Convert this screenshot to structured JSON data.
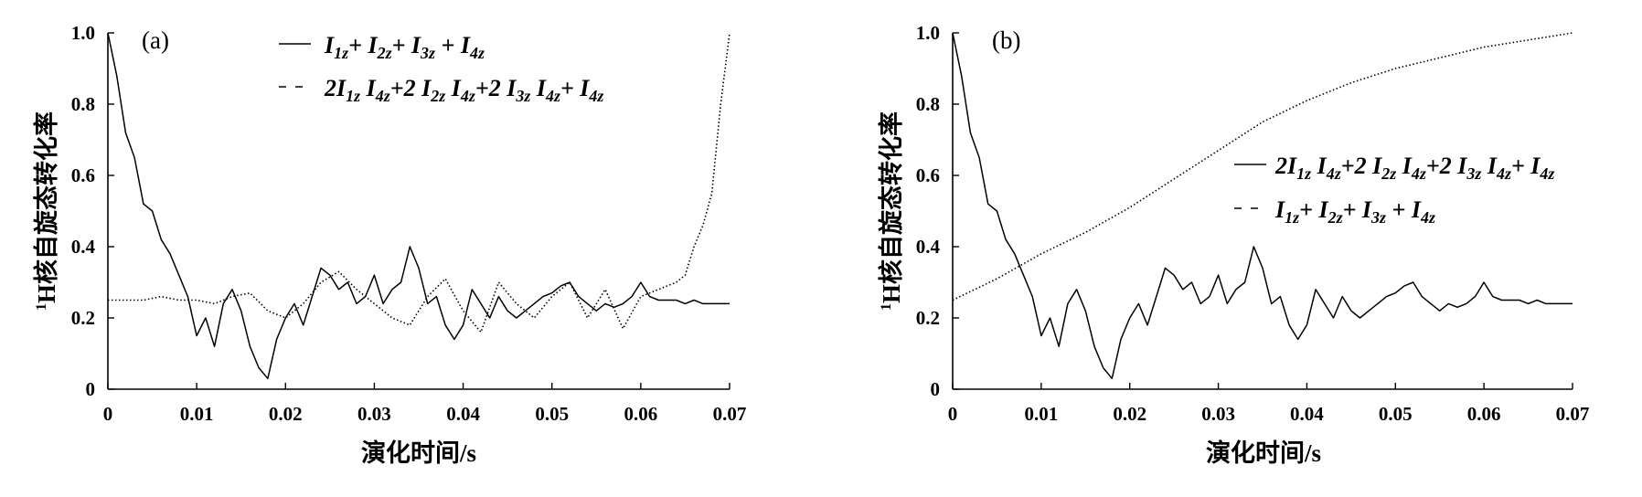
{
  "chart_data": [
    {
      "type": "line",
      "panel_label": "(a)",
      "xlabel": "演化时间/s",
      "ylabel": "1H核自旋态转化率",
      "ylabel_sup": "1",
      "ylabel_rest": "H核自旋态转化率",
      "xlim": [
        0,
        0.07
      ],
      "ylim": [
        0,
        1.0
      ],
      "xticks": [
        "0",
        "0.01",
        "0.02",
        "0.03",
        "0.04",
        "0.05",
        "0.06",
        "0.07"
      ],
      "yticks": [
        "0",
        "0.2",
        "0.4",
        "0.6",
        "0.8",
        "1.0"
      ],
      "legend_position": "top-center",
      "series": [
        {
          "name": "I1z+ I2z+ I3z + I4z",
          "style": "solid",
          "x": [
            0,
            0.001,
            0.002,
            0.003,
            0.004,
            0.005,
            0.006,
            0.007,
            0.008,
            0.009,
            0.01,
            0.011,
            0.012,
            0.013,
            0.014,
            0.015,
            0.016,
            0.017,
            0.018,
            0.019,
            0.02,
            0.021,
            0.022,
            0.023,
            0.024,
            0.025,
            0.026,
            0.027,
            0.028,
            0.029,
            0.03,
            0.031,
            0.032,
            0.033,
            0.034,
            0.035,
            0.036,
            0.037,
            0.038,
            0.039,
            0.04,
            0.041,
            0.042,
            0.043,
            0.044,
            0.045,
            0.046,
            0.047,
            0.048,
            0.049,
            0.05,
            0.051,
            0.052,
            0.053,
            0.054,
            0.055,
            0.056,
            0.057,
            0.058,
            0.059,
            0.06,
            0.061,
            0.062,
            0.063,
            0.064,
            0.065,
            0.066,
            0.067,
            0.068,
            0.069,
            0.07
          ],
          "y": [
            1.0,
            0.88,
            0.72,
            0.65,
            0.52,
            0.5,
            0.42,
            0.38,
            0.32,
            0.26,
            0.15,
            0.2,
            0.12,
            0.24,
            0.28,
            0.22,
            0.12,
            0.06,
            0.03,
            0.14,
            0.2,
            0.24,
            0.18,
            0.26,
            0.34,
            0.32,
            0.28,
            0.3,
            0.24,
            0.26,
            0.32,
            0.24,
            0.28,
            0.3,
            0.4,
            0.34,
            0.24,
            0.26,
            0.18,
            0.14,
            0.18,
            0.28,
            0.24,
            0.2,
            0.26,
            0.22,
            0.2,
            0.22,
            0.24,
            0.26,
            0.27,
            0.29,
            0.3,
            0.26,
            0.24,
            0.22,
            0.24,
            0.23,
            0.24,
            0.26,
            0.3,
            0.26,
            0.25,
            0.25,
            0.25,
            0.24,
            0.25,
            0.24,
            0.24,
            0.24,
            0.24
          ]
        },
        {
          "name": "2I1z I4z+2 I2z I4z+2 I3z I4z+ I4z",
          "style": "dotted",
          "x": [
            0,
            0.002,
            0.004,
            0.006,
            0.008,
            0.01,
            0.012,
            0.014,
            0.016,
            0.018,
            0.02,
            0.022,
            0.024,
            0.026,
            0.028,
            0.03,
            0.032,
            0.034,
            0.036,
            0.038,
            0.04,
            0.042,
            0.044,
            0.046,
            0.048,
            0.05,
            0.052,
            0.054,
            0.056,
            0.058,
            0.06,
            0.062,
            0.063,
            0.064,
            0.065,
            0.066,
            0.067,
            0.068,
            0.069,
            0.07
          ],
          "y": [
            0.25,
            0.25,
            0.25,
            0.26,
            0.25,
            0.25,
            0.24,
            0.26,
            0.27,
            0.22,
            0.2,
            0.24,
            0.3,
            0.33,
            0.28,
            0.24,
            0.2,
            0.18,
            0.26,
            0.31,
            0.22,
            0.16,
            0.3,
            0.24,
            0.2,
            0.26,
            0.3,
            0.2,
            0.28,
            0.17,
            0.26,
            0.28,
            0.29,
            0.3,
            0.32,
            0.4,
            0.46,
            0.55,
            0.8,
            1.0
          ]
        }
      ]
    },
    {
      "type": "line",
      "panel_label": "(b)",
      "xlabel": "演化时间/s",
      "ylabel": "1H核自旋态转化率",
      "ylabel_sup": "1",
      "ylabel_rest": "H核自旋态转化率",
      "xlim": [
        0,
        0.07
      ],
      "ylim": [
        0,
        1.0
      ],
      "xticks": [
        "0",
        "0.01",
        "0.02",
        "0.03",
        "0.04",
        "0.05",
        "0.06",
        "0.07"
      ],
      "yticks": [
        "0",
        "0.2",
        "0.4",
        "0.6",
        "0.8",
        "1.0"
      ],
      "legend_position": "right",
      "series": [
        {
          "name": "2I1z I4z+2 I2z I4z+2 I3z I4z+ I4z",
          "style": "solid",
          "x": [
            0,
            0.001,
            0.002,
            0.003,
            0.004,
            0.005,
            0.006,
            0.007,
            0.008,
            0.009,
            0.01,
            0.011,
            0.012,
            0.013,
            0.014,
            0.015,
            0.016,
            0.017,
            0.018,
            0.019,
            0.02,
            0.021,
            0.022,
            0.023,
            0.024,
            0.025,
            0.026,
            0.027,
            0.028,
            0.029,
            0.03,
            0.031,
            0.032,
            0.033,
            0.034,
            0.035,
            0.036,
            0.037,
            0.038,
            0.039,
            0.04,
            0.041,
            0.042,
            0.043,
            0.044,
            0.045,
            0.046,
            0.047,
            0.048,
            0.049,
            0.05,
            0.051,
            0.052,
            0.053,
            0.054,
            0.055,
            0.056,
            0.057,
            0.058,
            0.059,
            0.06,
            0.061,
            0.062,
            0.063,
            0.064,
            0.065,
            0.066,
            0.067,
            0.068,
            0.069,
            0.07
          ],
          "y": [
            1.0,
            0.88,
            0.72,
            0.65,
            0.52,
            0.5,
            0.42,
            0.38,
            0.32,
            0.26,
            0.15,
            0.2,
            0.12,
            0.24,
            0.28,
            0.22,
            0.12,
            0.06,
            0.03,
            0.14,
            0.2,
            0.24,
            0.18,
            0.26,
            0.34,
            0.32,
            0.28,
            0.3,
            0.24,
            0.26,
            0.32,
            0.24,
            0.28,
            0.3,
            0.4,
            0.34,
            0.24,
            0.26,
            0.18,
            0.14,
            0.18,
            0.28,
            0.24,
            0.2,
            0.26,
            0.22,
            0.2,
            0.22,
            0.24,
            0.26,
            0.27,
            0.29,
            0.3,
            0.26,
            0.24,
            0.22,
            0.24,
            0.23,
            0.24,
            0.26,
            0.3,
            0.26,
            0.25,
            0.25,
            0.25,
            0.24,
            0.25,
            0.24,
            0.24,
            0.24,
            0.24
          ]
        },
        {
          "name": "I1z+ I2z+ I3z + I4z",
          "style": "dotted",
          "x": [
            0,
            0.005,
            0.01,
            0.015,
            0.02,
            0.025,
            0.03,
            0.035,
            0.04,
            0.045,
            0.05,
            0.055,
            0.06,
            0.065,
            0.07
          ],
          "y": [
            0.25,
            0.31,
            0.38,
            0.44,
            0.51,
            0.59,
            0.67,
            0.75,
            0.81,
            0.86,
            0.9,
            0.93,
            0.96,
            0.98,
            1.0
          ]
        }
      ]
    }
  ]
}
